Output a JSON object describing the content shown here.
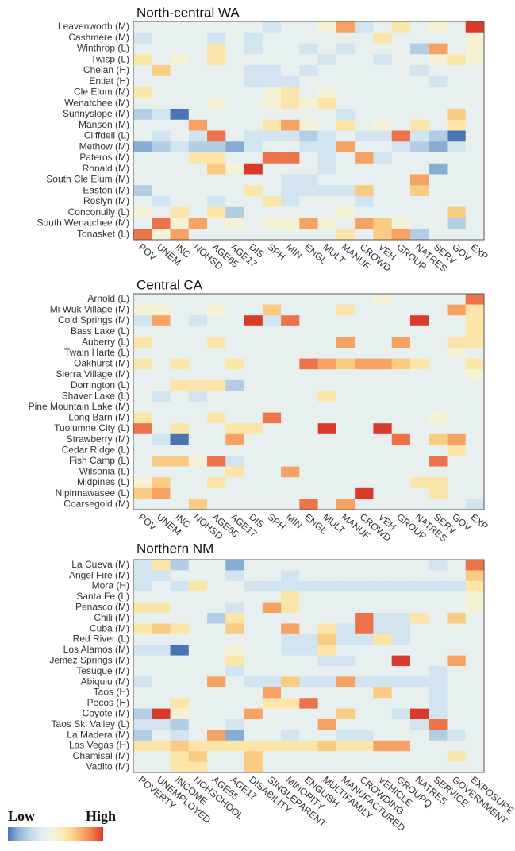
{
  "chart_data": [
    {
      "type": "heatmap",
      "title": "North-central WA",
      "rows": [
        "Leavenworth (M)",
        "Cashmere (M)",
        "Winthrop (L)",
        "Twisp (L)",
        "Chelan (H)",
        "Entiat (H)",
        "Cle Elum (M)",
        "Wenatchee (M)",
        "Sunnyslope (M)",
        "Manson (M)",
        "Cliffdell (L)",
        "Methow (M)",
        "Pateros (M)",
        "Ronald (M)",
        "South Cle Elum (M)",
        "Easton (M)",
        "Roslyn (M)",
        "Conconully (L)",
        "South Wenatchee (M)",
        "Tonasket (L)"
      ],
      "columns": [
        "POV",
        "UNEM",
        "INC",
        "NOHSD",
        "AGE65",
        "AGE17",
        "DIS",
        "SPH",
        "MIN",
        "ENGL",
        "MULT",
        "MANUF",
        "CROWD",
        "VEH",
        "GROUP",
        "NATRES",
        "SERV",
        "GOV",
        "EXP"
      ],
      "zlim": [
        0,
        10
      ],
      "values": [
        [
          4,
          4,
          4,
          4,
          4,
          4,
          4,
          3,
          4,
          4,
          5,
          8,
          3,
          4,
          6,
          4,
          5,
          4,
          10
        ],
        [
          3,
          4,
          4,
          4,
          3,
          4,
          3,
          4,
          4,
          4,
          4,
          4,
          4,
          6,
          4,
          4,
          4,
          4,
          5
        ],
        [
          4,
          4,
          4,
          4,
          6,
          4,
          3,
          4,
          4,
          3,
          4,
          3,
          4,
          4,
          4,
          2,
          8,
          4,
          5
        ],
        [
          6,
          4,
          5,
          4,
          6,
          4,
          4,
          4,
          4,
          4,
          3,
          4,
          4,
          3,
          4,
          4,
          5,
          6,
          5
        ],
        [
          4,
          7,
          4,
          4,
          4,
          4,
          3,
          3,
          4,
          3,
          4,
          4,
          4,
          4,
          4,
          3,
          4,
          4,
          4
        ],
        [
          4,
          4,
          4,
          4,
          4,
          4,
          3,
          3,
          3,
          4,
          4,
          4,
          4,
          4,
          4,
          4,
          3,
          4,
          4
        ],
        [
          6,
          4,
          4,
          4,
          4,
          4,
          4,
          5,
          6,
          4,
          5,
          4,
          4,
          4,
          4,
          4,
          4,
          4,
          4
        ],
        [
          4,
          4,
          4,
          4,
          5,
          4,
          4,
          5,
          6,
          5,
          6,
          4,
          4,
          4,
          4,
          4,
          4,
          4,
          4
        ],
        [
          2,
          3,
          0,
          4,
          4,
          4,
          4,
          4,
          4,
          4,
          4,
          3,
          4,
          4,
          4,
          4,
          4,
          7,
          4
        ],
        [
          4,
          4,
          4,
          8,
          4,
          4,
          4,
          6,
          8,
          5,
          4,
          6,
          4,
          5,
          4,
          6,
          4,
          6,
          4
        ],
        [
          4,
          3,
          4,
          3,
          9,
          4,
          3,
          3,
          3,
          2,
          3,
          4,
          3,
          3,
          9,
          3,
          2,
          0,
          4
        ],
        [
          1,
          2,
          3,
          2,
          2,
          1,
          3,
          4,
          4,
          3,
          3,
          8,
          4,
          4,
          3,
          2,
          1,
          3,
          4
        ],
        [
          4,
          4,
          4,
          6,
          6,
          4,
          4,
          9,
          9,
          4,
          3,
          4,
          8,
          3,
          4,
          4,
          4,
          4,
          4
        ],
        [
          4,
          4,
          4,
          4,
          7,
          5,
          10,
          4,
          4,
          4,
          3,
          4,
          4,
          4,
          4,
          4,
          1,
          4,
          4
        ],
        [
          4,
          4,
          4,
          4,
          4,
          4,
          4,
          4,
          3,
          3,
          4,
          4,
          4,
          4,
          4,
          8,
          4,
          4,
          4
        ],
        [
          2,
          4,
          4,
          4,
          4,
          4,
          6,
          4,
          3,
          3,
          3,
          3,
          7,
          4,
          4,
          7,
          4,
          4,
          4
        ],
        [
          4,
          3,
          4,
          4,
          3,
          4,
          4,
          6,
          3,
          4,
          4,
          4,
          3,
          4,
          4,
          4,
          4,
          4,
          4
        ],
        [
          5,
          4,
          6,
          4,
          6,
          2,
          4,
          4,
          4,
          4,
          4,
          5,
          4,
          4,
          4,
          4,
          4,
          7,
          4
        ],
        [
          4,
          9,
          5,
          8,
          4,
          5,
          4,
          5,
          5,
          8,
          5,
          4,
          8,
          7,
          5,
          4,
          4,
          2,
          4
        ],
        [
          9,
          5,
          8,
          4,
          4,
          4,
          4,
          4,
          4,
          4,
          4,
          6,
          4,
          7,
          8,
          2,
          4,
          4,
          4
        ]
      ]
    },
    {
      "type": "heatmap",
      "title": "Central CA",
      "rows": [
        "Arnold (L)",
        "Mi Wuk Village (M)",
        "Cold Springs (M)",
        "Bass Lake (L)",
        "Auberry (L)",
        "Twain Harte (L)",
        "Oakhurst (M)",
        "Sierra Village (M)",
        "Dorrington (L)",
        "Shaver Lake (L)",
        "Pine Mountain Lake (M)",
        "Long Barn (M)",
        "Tuolumne City (L)",
        "Strawberry (M)",
        "Cedar Ridge (L)",
        "Fish Camp (L)",
        "Wilsonia (L)",
        "Midpines (L)",
        "Nipinnawasee (L)",
        "Coarsegold (M)"
      ],
      "columns": [
        "POV",
        "UNEM",
        "INC",
        "NOHSD",
        "AGE65",
        "AGE17",
        "DIS",
        "SPH",
        "MIN",
        "ENGL",
        "MULT",
        "MANUF",
        "CROWD",
        "VEH",
        "GROUP",
        "NATRES",
        "SERV",
        "GOV",
        "EXP"
      ],
      "zlim": [
        0,
        10
      ],
      "values": [
        [
          4,
          4,
          4,
          4,
          4,
          4,
          4,
          4,
          4,
          4,
          4,
          4,
          4,
          5,
          4,
          4,
          4,
          4,
          9
        ],
        [
          5,
          5,
          4,
          4,
          5,
          4,
          4,
          7,
          4,
          4,
          4,
          6,
          4,
          4,
          4,
          4,
          4,
          8,
          6
        ],
        [
          3,
          8,
          4,
          3,
          4,
          4,
          10,
          3,
          9,
          4,
          4,
          4,
          4,
          4,
          4,
          10,
          4,
          4,
          6
        ],
        [
          4,
          4,
          4,
          4,
          4,
          4,
          4,
          4,
          4,
          4,
          4,
          4,
          4,
          4,
          4,
          4,
          4,
          4,
          6
        ],
        [
          6,
          4,
          4,
          4,
          6,
          4,
          4,
          4,
          4,
          4,
          4,
          8,
          4,
          4,
          8,
          4,
          4,
          6,
          6
        ],
        [
          4,
          4,
          4,
          4,
          4,
          4,
          4,
          4,
          4,
          4,
          4,
          4,
          4,
          4,
          4,
          4,
          4,
          5,
          4
        ],
        [
          6,
          4,
          6,
          4,
          4,
          6,
          4,
          4,
          4,
          9,
          8,
          7,
          8,
          8,
          7,
          6,
          4,
          4,
          6
        ],
        [
          4,
          4,
          4,
          4,
          4,
          4,
          4,
          4,
          4,
          4,
          4,
          4,
          4,
          4,
          4,
          4,
          4,
          4,
          5
        ],
        [
          4,
          4,
          6,
          6,
          6,
          2,
          4,
          4,
          4,
          4,
          4,
          4,
          4,
          4,
          4,
          4,
          4,
          4,
          4
        ],
        [
          4,
          3,
          4,
          3,
          4,
          4,
          4,
          4,
          4,
          4,
          6,
          4,
          4,
          4,
          4,
          4,
          4,
          4,
          4
        ],
        [
          4,
          4,
          4,
          4,
          4,
          4,
          4,
          4,
          4,
          4,
          4,
          4,
          4,
          4,
          4,
          4,
          4,
          4,
          4
        ],
        [
          6,
          4,
          4,
          4,
          6,
          4,
          4,
          9,
          4,
          4,
          4,
          4,
          4,
          4,
          4,
          4,
          5,
          4,
          4
        ],
        [
          9,
          4,
          6,
          4,
          4,
          6,
          6,
          4,
          4,
          4,
          10,
          4,
          4,
          10,
          4,
          4,
          4,
          4,
          4
        ],
        [
          4,
          3,
          0,
          4,
          4,
          8,
          4,
          4,
          4,
          4,
          4,
          4,
          4,
          4,
          9,
          4,
          7,
          8,
          4
        ],
        [
          4,
          4,
          4,
          4,
          4,
          4,
          4,
          4,
          4,
          4,
          4,
          4,
          4,
          4,
          4,
          4,
          4,
          6,
          4
        ],
        [
          4,
          7,
          7,
          5,
          9,
          3,
          4,
          4,
          4,
          4,
          4,
          4,
          4,
          4,
          4,
          4,
          9,
          4,
          4
        ],
        [
          4,
          4,
          4,
          4,
          4,
          6,
          4,
          4,
          8,
          4,
          4,
          4,
          4,
          4,
          4,
          4,
          4,
          4,
          4
        ],
        [
          5,
          7,
          4,
          4,
          6,
          4,
          4,
          4,
          4,
          4,
          4,
          4,
          4,
          4,
          4,
          6,
          6,
          4,
          4
        ],
        [
          7,
          8,
          4,
          4,
          4,
          4,
          4,
          4,
          4,
          4,
          4,
          4,
          10,
          4,
          4,
          4,
          6,
          4,
          4
        ],
        [
          4,
          4,
          4,
          7,
          4,
          4,
          4,
          4,
          4,
          9,
          4,
          8,
          4,
          4,
          4,
          4,
          4,
          4,
          3
        ]
      ]
    },
    {
      "type": "heatmap",
      "title": "Northern NM",
      "rows": [
        "La Cueva (M)",
        "Angel Fire (M)",
        "Mora (H)",
        "Santa Fe (L)",
        "Penasco (M)",
        "Chili (M)",
        "Cuba (M)",
        "Red River (L)",
        "Los Alamos (M)",
        "Jemez Springs (M)",
        "Tesuque (M)",
        "Abiquiu (M)",
        "Taos (H)",
        "Pecos (H)",
        "Coyote (M)",
        "Taos Ski Valley (L)",
        "La Madera (M)",
        "Las Vegas (H)",
        "Chamisal (M)",
        "Vadito (M)"
      ],
      "columns": [
        "POVERTY",
        "UNEMPLOYED",
        "INCOME",
        "NOHSCHOOL",
        "AGE65",
        "AGE17",
        "DISABILITY",
        "SINGLEPARENT",
        "MINORITY",
        "ENGLISH",
        "MULTIFAMILY",
        "MANUFACTURED",
        "CROWDING",
        "VEHICLE",
        "GROUPQ",
        "NATRES",
        "SERVICE",
        "GOVERNMENT",
        "EXPOSURE"
      ],
      "zlim": [
        0,
        10
      ],
      "values": [
        [
          3,
          6,
          2,
          4,
          4,
          1,
          4,
          4,
          4,
          4,
          4,
          4,
          4,
          4,
          4,
          4,
          3,
          4,
          9
        ],
        [
          3,
          3,
          4,
          4,
          4,
          3,
          4,
          4,
          3,
          4,
          4,
          4,
          4,
          4,
          4,
          4,
          4,
          4,
          7
        ],
        [
          3,
          4,
          3,
          6,
          4,
          4,
          3,
          3,
          3,
          3,
          3,
          3,
          3,
          3,
          3,
          3,
          3,
          3,
          6
        ],
        [
          4,
          4,
          4,
          4,
          4,
          4,
          4,
          4,
          6,
          4,
          4,
          4,
          4,
          4,
          4,
          4,
          4,
          4,
          5
        ],
        [
          6,
          6,
          4,
          4,
          4,
          3,
          4,
          8,
          6,
          4,
          4,
          4,
          4,
          4,
          4,
          4,
          4,
          4,
          5
        ],
        [
          4,
          4,
          4,
          4,
          2,
          6,
          4,
          4,
          4,
          4,
          4,
          4,
          9,
          3,
          3,
          6,
          4,
          7,
          4
        ],
        [
          6,
          7,
          6,
          4,
          4,
          7,
          4,
          4,
          8,
          4,
          6,
          3,
          9,
          3,
          3,
          4,
          4,
          4,
          4
        ],
        [
          4,
          4,
          4,
          4,
          4,
          4,
          4,
          4,
          3,
          3,
          7,
          3,
          3,
          6,
          3,
          4,
          4,
          4,
          4
        ],
        [
          3,
          3,
          0,
          4,
          4,
          5,
          4,
          4,
          3,
          3,
          6,
          4,
          4,
          4,
          4,
          4,
          4,
          4,
          4
        ],
        [
          4,
          4,
          4,
          4,
          4,
          6,
          4,
          4,
          4,
          4,
          3,
          3,
          4,
          4,
          10,
          4,
          4,
          8,
          4
        ],
        [
          4,
          4,
          4,
          4,
          4,
          3,
          4,
          4,
          4,
          4,
          4,
          4,
          4,
          4,
          4,
          4,
          3,
          4,
          4
        ],
        [
          3,
          4,
          4,
          4,
          8,
          4,
          3,
          3,
          7,
          3,
          3,
          8,
          3,
          3,
          3,
          3,
          3,
          4,
          4
        ],
        [
          4,
          4,
          4,
          4,
          4,
          4,
          4,
          8,
          4,
          4,
          4,
          4,
          4,
          7,
          4,
          4,
          3,
          4,
          4
        ],
        [
          4,
          4,
          6,
          4,
          4,
          4,
          4,
          6,
          6,
          9,
          4,
          4,
          4,
          4,
          4,
          4,
          3,
          4,
          4
        ],
        [
          2,
          10,
          5,
          4,
          4,
          4,
          8,
          4,
          4,
          4,
          4,
          7,
          4,
          4,
          3,
          10,
          3,
          4,
          4
        ],
        [
          3,
          3,
          2,
          4,
          4,
          3,
          4,
          4,
          4,
          4,
          8,
          4,
          4,
          4,
          4,
          3,
          9,
          4,
          4
        ],
        [
          2,
          4,
          3,
          4,
          8,
          1,
          4,
          4,
          3,
          4,
          4,
          3,
          3,
          4,
          4,
          4,
          2,
          3,
          4
        ],
        [
          6,
          6,
          7,
          6,
          6,
          6,
          6,
          6,
          6,
          6,
          7,
          6,
          6,
          8,
          8,
          4,
          4,
          4,
          4
        ],
        [
          4,
          4,
          6,
          7,
          4,
          4,
          7,
          4,
          4,
          4,
          4,
          4,
          4,
          4,
          4,
          4,
          4,
          6,
          4
        ],
        [
          4,
          4,
          6,
          6,
          4,
          4,
          7,
          4,
          4,
          4,
          4,
          4,
          4,
          4,
          4,
          4,
          4,
          4,
          4
        ]
      ]
    }
  ],
  "colorbar": {
    "low": "Low",
    "high": "High",
    "colors": [
      "#4a74b4",
      "#8fb3d6",
      "#bcd5e8",
      "#dcebf3",
      "#eef3ec",
      "#fbeebb",
      "#fbd88d",
      "#f8ac68",
      "#ef7a4d",
      "#d93a2a"
    ]
  }
}
